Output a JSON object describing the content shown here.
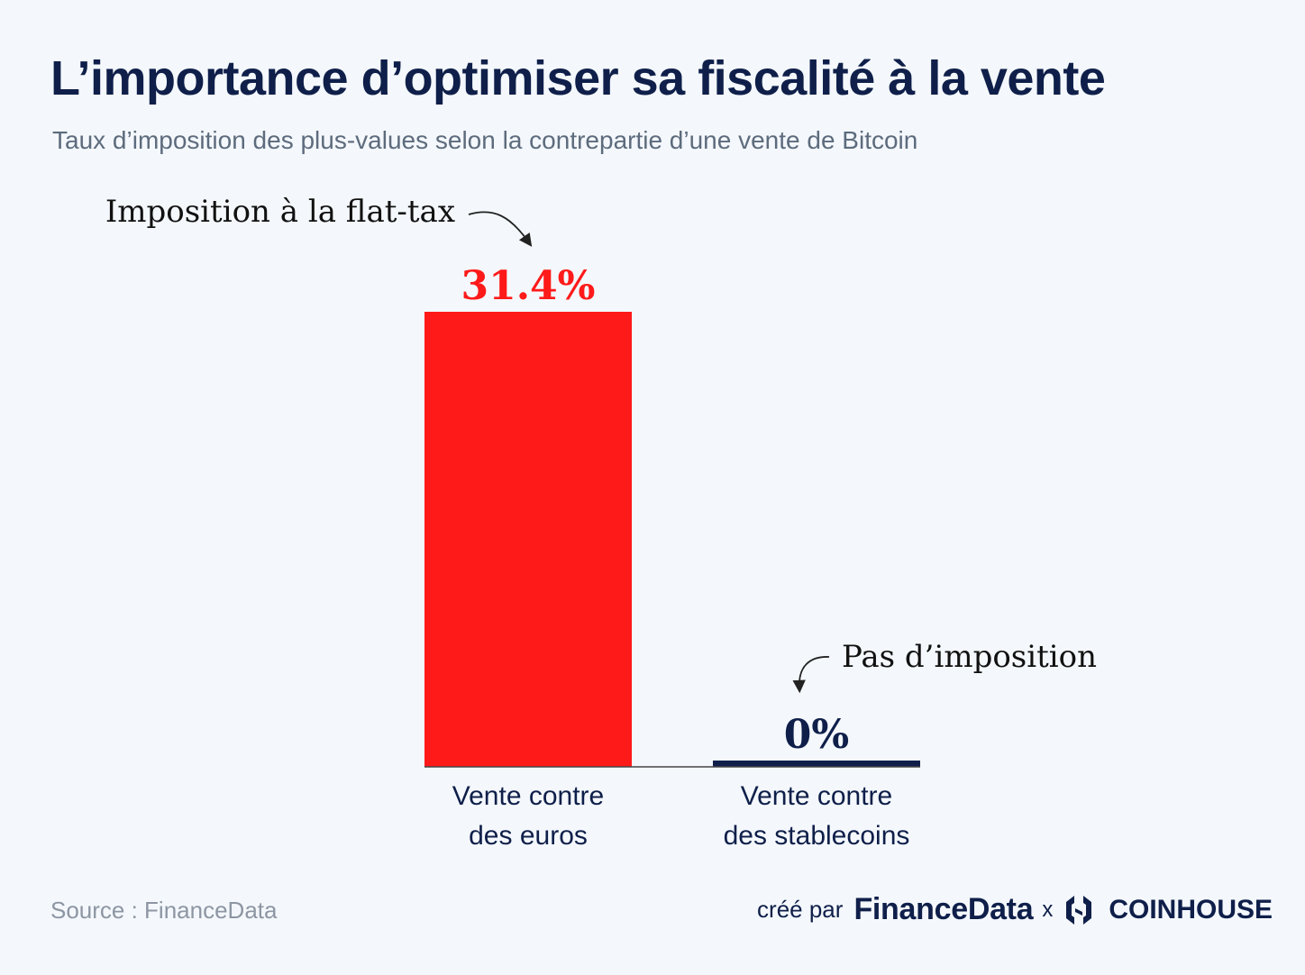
{
  "colors": {
    "navy": "#0f1f4a",
    "red": "#ff1a1a",
    "background": "#f4f8fc",
    "subtitle": "#5d6b7d",
    "source": "#8d96a3"
  },
  "header": {
    "title": "L’importance d’optimiser sa fiscalité à la vente",
    "subtitle": "Taux d’imposition des plus-values selon la contrepartie d’une vente de Bitcoin"
  },
  "chart_data": {
    "type": "bar",
    "title": "L’importance d’optimiser sa fiscalité à la vente",
    "subtitle": "Taux d’imposition des plus-values selon la contrepartie d’une vente de Bitcoin",
    "categories": [
      [
        "Vente contre",
        "des euros"
      ],
      [
        "Vente contre",
        "des stablecoins"
      ]
    ],
    "values": [
      31.4,
      0
    ],
    "value_labels": [
      "31.4%",
      "0%"
    ],
    "bar_colors": [
      "#ff1a1a",
      "#0f1f4a"
    ],
    "annotations": [
      "Imposition à la flat-tax",
      "Pas d’imposition"
    ],
    "xlabel": "",
    "ylabel": "",
    "ylim": [
      0,
      31.4
    ],
    "grid": false
  },
  "footer": {
    "source": "Source : FinanceData",
    "created_by": "créé par",
    "brand1": "FinanceData",
    "separator": "x",
    "brand2": "COINHOUSE",
    "brand2_icon": "coinhouse-logo-icon"
  }
}
